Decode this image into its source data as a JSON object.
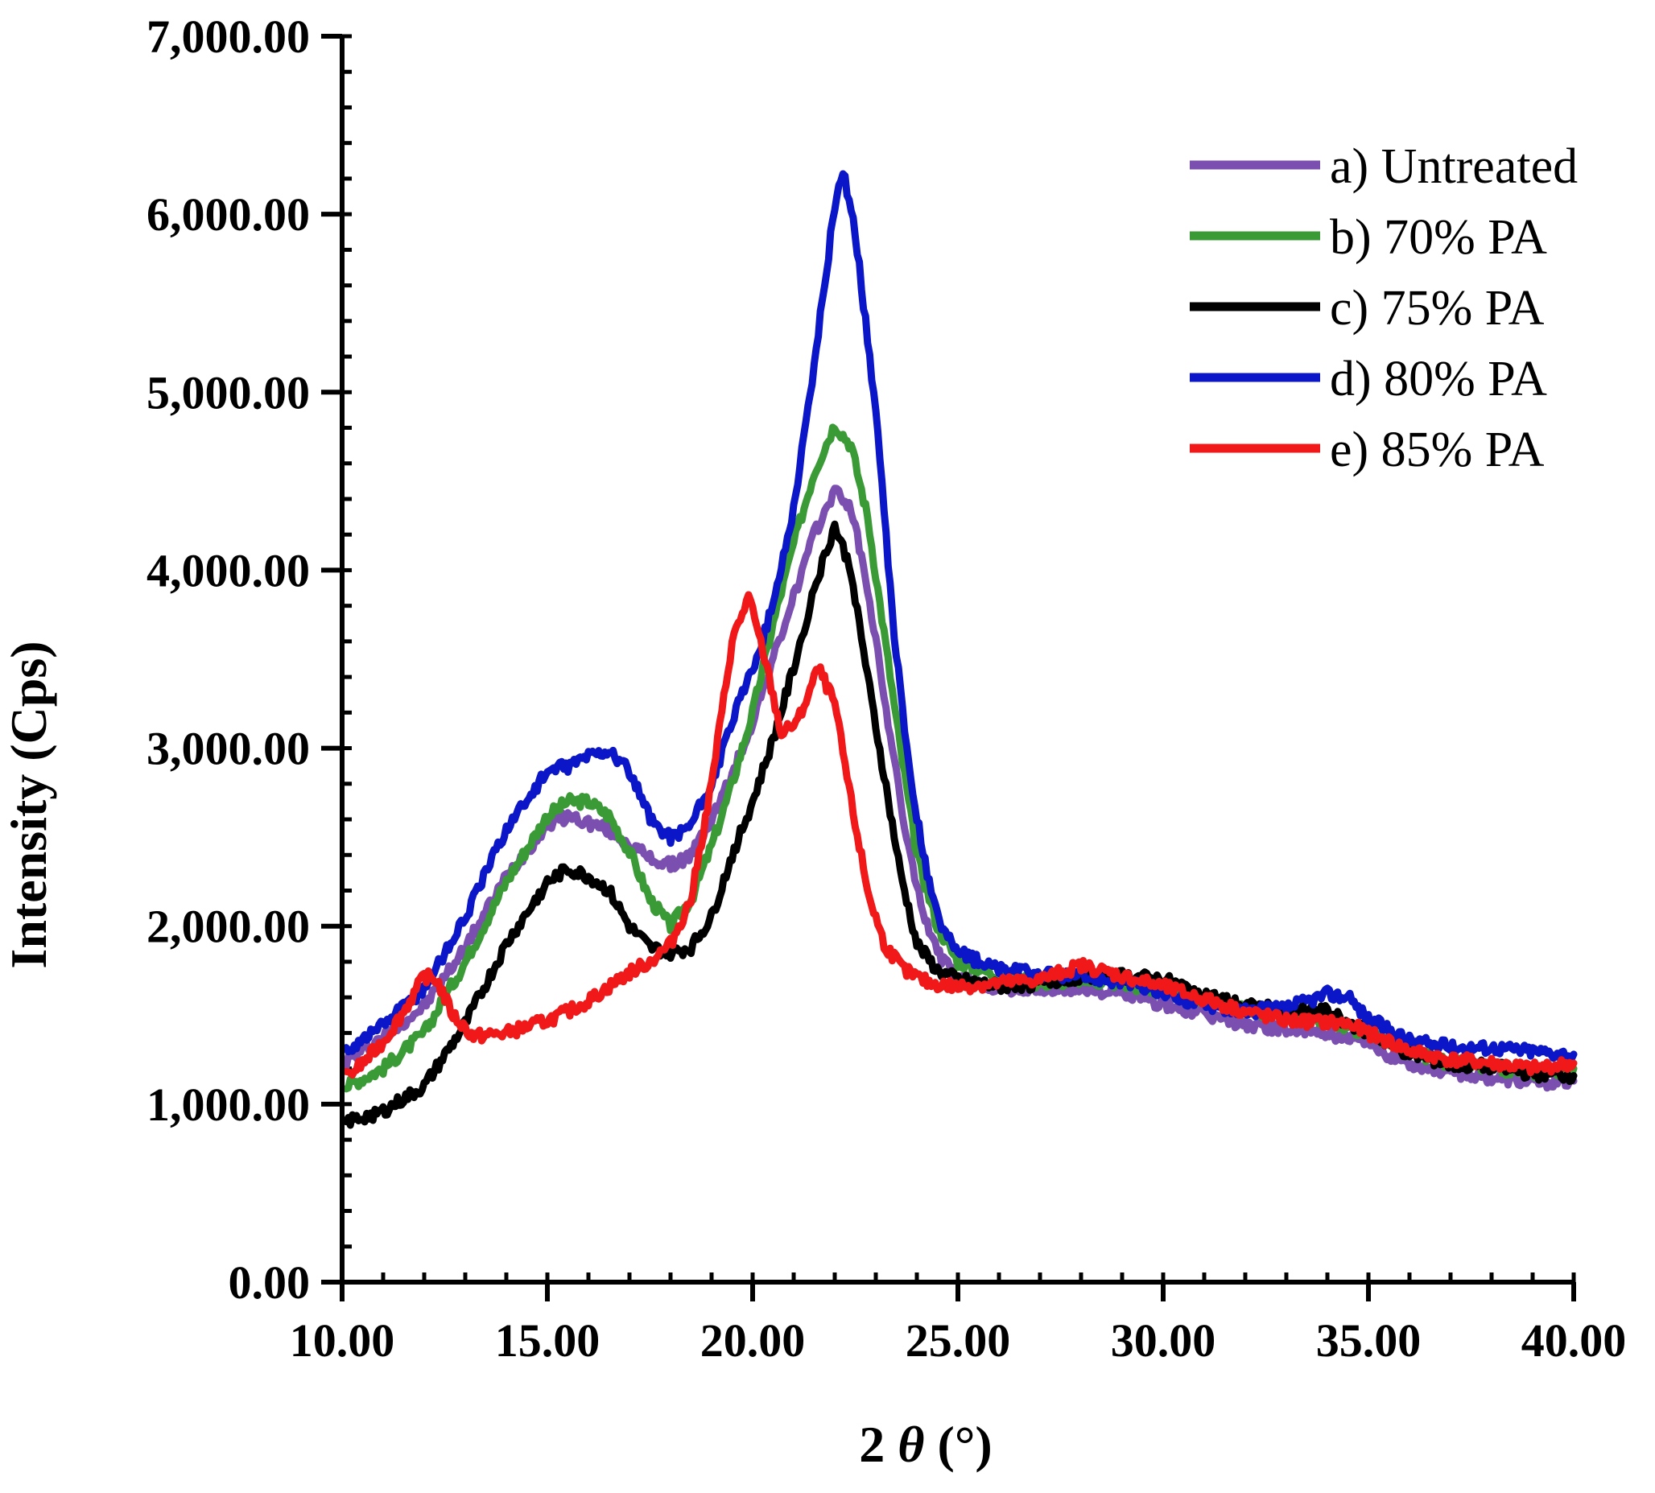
{
  "chart_data": {
    "type": "line",
    "title": "",
    "xlabel_prefix": "2 ",
    "xlabel_symbol": "θ",
    "xlabel_suffix": " (°)",
    "ylabel": "Intensity (Cps)",
    "xlim": [
      10,
      40
    ],
    "ylim": [
      0,
      7000
    ],
    "xticks": [
      "10.00",
      "15.00",
      "20.00",
      "25.00",
      "30.00",
      "35.00",
      "40.00"
    ],
    "yticks": [
      "0.00",
      "1,000.00",
      "2,000.00",
      "3,000.00",
      "4,000.00",
      "5,000.00",
      "6,000.00",
      "7,000.00"
    ],
    "legend_position": "top-right",
    "series": [
      {
        "name": "a) Untreated",
        "color": "#7b4fb0",
        "points": [
          [
            10.1,
            1240
          ],
          [
            11,
            1380
          ],
          [
            12,
            1550
          ],
          [
            13,
            1880
          ],
          [
            14,
            2280
          ],
          [
            15,
            2570
          ],
          [
            15.5,
            2620
          ],
          [
            16,
            2580
          ],
          [
            16.5,
            2540
          ],
          [
            17,
            2460
          ],
          [
            17.5,
            2380
          ],
          [
            18,
            2340
          ],
          [
            18.5,
            2400
          ],
          [
            19,
            2600
          ],
          [
            19.5,
            2850
          ],
          [
            20,
            3150
          ],
          [
            20.5,
            3500
          ],
          [
            21,
            3850
          ],
          [
            21.5,
            4200
          ],
          [
            22,
            4450
          ],
          [
            22.4,
            4350
          ],
          [
            22.8,
            3900
          ],
          [
            23.2,
            3300
          ],
          [
            23.6,
            2700
          ],
          [
            24,
            2200
          ],
          [
            24.5,
            1850
          ],
          [
            25,
            1700
          ],
          [
            26,
            1650
          ],
          [
            27,
            1640
          ],
          [
            28,
            1650
          ],
          [
            29,
            1620
          ],
          [
            30,
            1560
          ],
          [
            31,
            1500
          ],
          [
            32,
            1450
          ],
          [
            33,
            1420
          ],
          [
            34,
            1400
          ],
          [
            35,
            1330
          ],
          [
            36,
            1230
          ],
          [
            37,
            1180
          ],
          [
            38,
            1150
          ],
          [
            39,
            1120
          ],
          [
            40,
            1130
          ]
        ]
      },
      {
        "name": "b) 70% PA",
        "color": "#3a9a35",
        "points": [
          [
            10.1,
            1100
          ],
          [
            11,
            1200
          ],
          [
            12,
            1400
          ],
          [
            13,
            1800
          ],
          [
            14,
            2250
          ],
          [
            15,
            2620
          ],
          [
            15.5,
            2700
          ],
          [
            16,
            2700
          ],
          [
            16.5,
            2620
          ],
          [
            17,
            2420
          ],
          [
            17.5,
            2150
          ],
          [
            18,
            2000
          ],
          [
            18.5,
            2150
          ],
          [
            19,
            2450
          ],
          [
            19.5,
            2800
          ],
          [
            20,
            3200
          ],
          [
            20.5,
            3700
          ],
          [
            21,
            4150
          ],
          [
            21.5,
            4550
          ],
          [
            22,
            4820
          ],
          [
            22.4,
            4700
          ],
          [
            22.8,
            4300
          ],
          [
            23.2,
            3650
          ],
          [
            23.6,
            3000
          ],
          [
            24,
            2400
          ],
          [
            24.5,
            2000
          ],
          [
            25,
            1800
          ],
          [
            26,
            1720
          ],
          [
            27,
            1680
          ],
          [
            28,
            1700
          ],
          [
            29,
            1680
          ],
          [
            30,
            1630
          ],
          [
            31,
            1580
          ],
          [
            32,
            1530
          ],
          [
            33,
            1500
          ],
          [
            34,
            1470
          ],
          [
            35,
            1400
          ],
          [
            36,
            1300
          ],
          [
            37,
            1230
          ],
          [
            38,
            1200
          ],
          [
            39,
            1180
          ],
          [
            40,
            1200
          ]
        ]
      },
      {
        "name": "c) 75% PA",
        "color": "#000000",
        "points": [
          [
            10.1,
            900
          ],
          [
            11,
            960
          ],
          [
            12,
            1100
          ],
          [
            13,
            1450
          ],
          [
            14,
            1900
          ],
          [
            15,
            2250
          ],
          [
            15.5,
            2320
          ],
          [
            16,
            2280
          ],
          [
            16.5,
            2200
          ],
          [
            17,
            2000
          ],
          [
            17.5,
            1880
          ],
          [
            18,
            1850
          ],
          [
            18.5,
            1880
          ],
          [
            19,
            2050
          ],
          [
            19.5,
            2400
          ],
          [
            20,
            2700
          ],
          [
            20.5,
            3050
          ],
          [
            21,
            3450
          ],
          [
            21.5,
            3900
          ],
          [
            22,
            4250
          ],
          [
            22.4,
            4000
          ],
          [
            22.8,
            3400
          ],
          [
            23.2,
            2850
          ],
          [
            23.6,
            2300
          ],
          [
            24,
            1900
          ],
          [
            24.5,
            1750
          ],
          [
            25,
            1700
          ],
          [
            26,
            1660
          ],
          [
            27,
            1680
          ],
          [
            28,
            1720
          ],
          [
            29,
            1720
          ],
          [
            30,
            1700
          ],
          [
            31,
            1620
          ],
          [
            32,
            1550
          ],
          [
            33,
            1530
          ],
          [
            34,
            1520
          ],
          [
            35,
            1400
          ],
          [
            36,
            1280
          ],
          [
            37,
            1220
          ],
          [
            38,
            1210
          ],
          [
            39,
            1170
          ],
          [
            40,
            1160
          ]
        ]
      },
      {
        "name": "d) 80% PA",
        "color": "#0a16c8",
        "points": [
          [
            10.1,
            1300
          ],
          [
            11,
            1450
          ],
          [
            12,
            1650
          ],
          [
            13,
            2050
          ],
          [
            14,
            2550
          ],
          [
            15,
            2870
          ],
          [
            15.5,
            2900
          ],
          [
            16,
            2960
          ],
          [
            16.5,
            2990
          ],
          [
            17,
            2870
          ],
          [
            17.5,
            2600
          ],
          [
            18,
            2500
          ],
          [
            18.5,
            2570
          ],
          [
            19,
            2800
          ],
          [
            19.5,
            3150
          ],
          [
            20,
            3450
          ],
          [
            20.5,
            3800
          ],
          [
            21,
            4350
          ],
          [
            21.5,
            5150
          ],
          [
            22,
            6050
          ],
          [
            22.2,
            6250
          ],
          [
            22.5,
            5900
          ],
          [
            23,
            4900
          ],
          [
            23.4,
            3750
          ],
          [
            23.8,
            2900
          ],
          [
            24.2,
            2350
          ],
          [
            24.6,
            2000
          ],
          [
            25,
            1850
          ],
          [
            26,
            1760
          ],
          [
            27,
            1730
          ],
          [
            28,
            1720
          ],
          [
            29,
            1690
          ],
          [
            30,
            1620
          ],
          [
            31,
            1560
          ],
          [
            32,
            1520
          ],
          [
            33,
            1540
          ],
          [
            34,
            1620
          ],
          [
            34.5,
            1600
          ],
          [
            35,
            1480
          ],
          [
            36,
            1360
          ],
          [
            37,
            1320
          ],
          [
            38,
            1320
          ],
          [
            39,
            1300
          ],
          [
            40,
            1280
          ]
        ]
      },
      {
        "name": "e) 85% PA",
        "color": "#f01818",
        "points": [
          [
            10.1,
            1150
          ],
          [
            10.5,
            1230
          ],
          [
            11,
            1350
          ],
          [
            11.5,
            1520
          ],
          [
            12,
            1720
          ],
          [
            12.3,
            1700
          ],
          [
            12.7,
            1500
          ],
          [
            13.2,
            1380
          ],
          [
            14,
            1400
          ],
          [
            15,
            1470
          ],
          [
            15.5,
            1520
          ],
          [
            16,
            1580
          ],
          [
            16.5,
            1660
          ],
          [
            17,
            1740
          ],
          [
            17.5,
            1800
          ],
          [
            18,
            1900
          ],
          [
            18.5,
            2150
          ],
          [
            19,
            2800
          ],
          [
            19.5,
            3600
          ],
          [
            19.9,
            3850
          ],
          [
            20.3,
            3500
          ],
          [
            20.7,
            3080
          ],
          [
            21.1,
            3150
          ],
          [
            21.6,
            3450
          ],
          [
            22,
            3250
          ],
          [
            22.4,
            2700
          ],
          [
            22.8,
            2200
          ],
          [
            23.2,
            1900
          ],
          [
            23.7,
            1750
          ],
          [
            24.3,
            1680
          ],
          [
            25,
            1660
          ],
          [
            26,
            1680
          ],
          [
            27,
            1700
          ],
          [
            28,
            1780
          ],
          [
            29,
            1720
          ],
          [
            30,
            1660
          ],
          [
            31,
            1590
          ],
          [
            32,
            1520
          ],
          [
            33,
            1470
          ],
          [
            34,
            1460
          ],
          [
            34.5,
            1450
          ],
          [
            35,
            1400
          ],
          [
            36,
            1300
          ],
          [
            37,
            1250
          ],
          [
            38,
            1230
          ],
          [
            39,
            1200
          ],
          [
            40,
            1230
          ]
        ]
      }
    ]
  }
}
